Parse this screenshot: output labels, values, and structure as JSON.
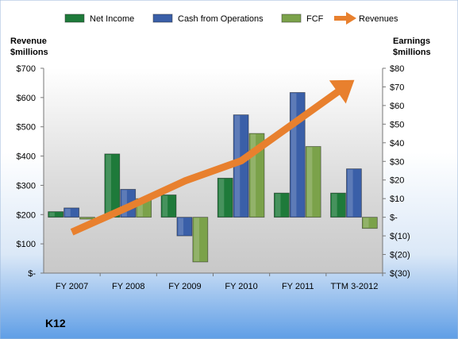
{
  "chart_data": {
    "type": "bar",
    "ticker": "K12",
    "categories": [
      "FY 2007",
      "FY 2008",
      "FY 2009",
      "FY 2010",
      "FY 2011",
      "TTM 3-2012"
    ],
    "left_axis": {
      "title_line1": "Revenue",
      "title_line2": "$millions",
      "ticks": [
        0,
        100,
        200,
        300,
        400,
        500,
        600,
        700
      ],
      "tick_labels": [
        "$-",
        "$100",
        "$200",
        "$300",
        "$400",
        "$500",
        "$600",
        "$700"
      ],
      "ylim": [
        0,
        700
      ]
    },
    "right_axis": {
      "title_line1": "Earnings",
      "title_line2": "$millions",
      "ticks": [
        -30,
        -20,
        -10,
        0,
        10,
        20,
        30,
        40,
        50,
        60,
        70,
        80
      ],
      "tick_labels": [
        "$(30)",
        "$(20)",
        "$(10)",
        "$-",
        "$10",
        "$20",
        "$30",
        "$40",
        "$50",
        "$60",
        "$70",
        "$80"
      ],
      "ylim": [
        -30,
        80
      ]
    },
    "series": [
      {
        "name": "Net Income",
        "axis": "right",
        "kind": "bar",
        "color": "#1e7a3a",
        "values": [
          3,
          34,
          12,
          21,
          13,
          13
        ]
      },
      {
        "name": "Cash from Operations",
        "axis": "right",
        "kind": "bar",
        "color": "#3a5fa8",
        "values": [
          5,
          15,
          -10,
          55,
          67,
          26
        ]
      },
      {
        "name": "FCF",
        "axis": "right",
        "kind": "bar",
        "color": "#7ba24a",
        "values": [
          -1,
          10,
          -24,
          45,
          38,
          -6
        ]
      },
      {
        "name": "Revenues",
        "axis": "left",
        "kind": "arrow",
        "color": "#e8802e",
        "values": [
          140,
          226,
          315,
          384,
          522,
          660
        ]
      }
    ],
    "legend_position": "top",
    "grid": false
  }
}
